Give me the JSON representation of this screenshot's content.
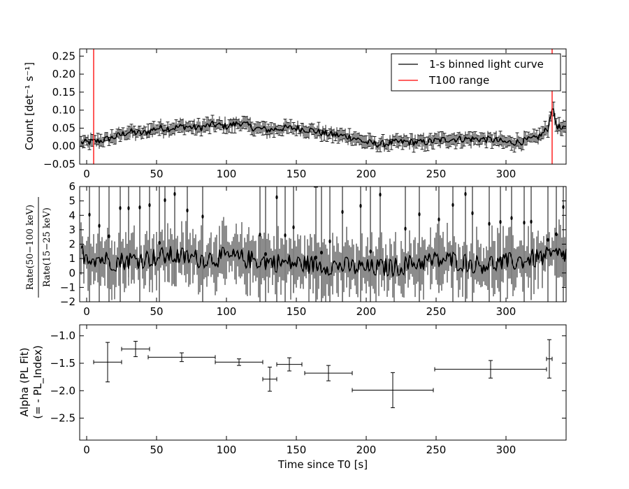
{
  "chart_data": [
    {
      "type": "line",
      "panel": "top",
      "ylabel": "Count [det⁻¹ s⁻¹]",
      "xlim": [
        -5,
        343
      ],
      "ylim": [
        -0.05,
        0.27
      ],
      "xticks": [
        0,
        50,
        100,
        150,
        200,
        250,
        300
      ],
      "xtick_labels": [
        "0",
        "50",
        "100",
        "150",
        "200",
        "250",
        "300"
      ],
      "yticks": [
        -0.05,
        0.0,
        0.05,
        0.1,
        0.15,
        0.2,
        0.25
      ],
      "ytick_labels": [
        "−0.05",
        "0.00",
        "0.05",
        "0.10",
        "0.15",
        "0.20",
        "0.25"
      ],
      "legend": {
        "placement": "top-right",
        "entries": [
          {
            "label": "1-s binned light curve",
            "color": "#000000"
          },
          {
            "label": "T100 range",
            "color": "#ff0000"
          }
        ]
      },
      "vlines": [
        5,
        333
      ],
      "series_control_points": {
        "x": [
          -5,
          0,
          10,
          20,
          30,
          40,
          50,
          60,
          70,
          80,
          90,
          100,
          110,
          120,
          130,
          140,
          150,
          160,
          170,
          180,
          190,
          200,
          210,
          220,
          230,
          240,
          250,
          260,
          270,
          280,
          290,
          300,
          310,
          320,
          325,
          330,
          333,
          336,
          340,
          343
        ],
        "y": [
          0.01,
          0.01,
          0.015,
          0.025,
          0.04,
          0.035,
          0.05,
          0.05,
          0.055,
          0.05,
          0.06,
          0.055,
          0.065,
          0.05,
          0.045,
          0.05,
          0.05,
          0.045,
          0.035,
          0.03,
          0.025,
          0.01,
          0.005,
          0.01,
          0.012,
          0.01,
          0.015,
          0.02,
          0.02,
          0.02,
          0.018,
          0.01,
          0.012,
          0.02,
          0.03,
          0.05,
          0.11,
          0.06,
          0.045,
          0.05
        ]
      },
      "errorbar_size": 0.015
    },
    {
      "type": "line",
      "panel": "middle",
      "ylabel_numerator": "Rate(50−100 keV)",
      "ylabel_denominator": "Rate(15−25 keV)",
      "xlim": [
        -5,
        343
      ],
      "ylim": [
        -2,
        6
      ],
      "xticks": [
        0,
        50,
        100,
        150,
        200,
        250,
        300
      ],
      "xtick_labels": [
        "0",
        "50",
        "100",
        "150",
        "200",
        "250",
        "300"
      ],
      "yticks": [
        -2,
        -1,
        0,
        1,
        2,
        3,
        4,
        5,
        6
      ],
      "ytick_labels": [
        "−2",
        "−1",
        "0",
        "1",
        "2",
        "3",
        "4",
        "5",
        "6"
      ],
      "series_control_points": {
        "x": [
          -5,
          0,
          20,
          40,
          60,
          80,
          100,
          120,
          140,
          160,
          180,
          200,
          220,
          240,
          260,
          280,
          300,
          320,
          343
        ],
        "y": [
          1.5,
          1.2,
          0.8,
          1.0,
          1.2,
          1.0,
          1.1,
          0.9,
          0.7,
          0.6,
          0.5,
          0.3,
          0.4,
          0.8,
          0.9,
          0.6,
          0.7,
          1.0,
          1.3
        ]
      },
      "outliers_x": [
        2,
        9,
        16,
        24,
        30,
        38,
        45,
        52,
        56,
        63,
        72,
        83,
        124,
        128,
        136,
        142,
        148,
        164,
        168,
        174,
        183,
        196,
        203,
        210,
        228,
        238,
        252,
        262,
        271,
        276,
        288,
        296,
        304,
        313,
        318,
        330,
        336,
        341
      ]
    },
    {
      "type": "scatter",
      "panel": "bottom",
      "xlabel": "Time since T0 [s]",
      "ylabel_line1": "Alpha (PL Fit)",
      "ylabel_line2": "(= - PL_Index)",
      "xlim": [
        -5,
        343
      ],
      "ylim": [
        -2.9,
        -0.8
      ],
      "xticks": [
        0,
        50,
        100,
        150,
        200,
        250,
        300
      ],
      "xtick_labels": [
        "0",
        "50",
        "100",
        "150",
        "200",
        "250",
        "300"
      ],
      "yticks": [
        -2.5,
        -2.0,
        -1.5,
        -1.0
      ],
      "ytick_labels": [
        "−2.5",
        "−2.0",
        "−1.5",
        "−1.0"
      ],
      "points": [
        {
          "x": 15,
          "xerr_lo": 10,
          "xerr_hi": 10,
          "y": -1.48,
          "yerr": 0.36
        },
        {
          "x": 35,
          "xerr_lo": 10,
          "xerr_hi": 10,
          "y": -1.24,
          "yerr": 0.14
        },
        {
          "x": 68,
          "xerr_lo": 24,
          "xerr_hi": 24,
          "y": -1.39,
          "yerr": 0.08
        },
        {
          "x": 109,
          "xerr_lo": 17,
          "xerr_hi": 17,
          "y": -1.48,
          "yerr": 0.06
        },
        {
          "x": 131,
          "xerr_lo": 5,
          "xerr_hi": 5,
          "y": -1.79,
          "yerr": 0.22
        },
        {
          "x": 145,
          "xerr_lo": 9,
          "xerr_hi": 9,
          "y": -1.52,
          "yerr": 0.12
        },
        {
          "x": 173,
          "xerr_lo": 17,
          "xerr_hi": 17,
          "y": -1.68,
          "yerr": 0.14
        },
        {
          "x": 219,
          "xerr_lo": 29,
          "xerr_hi": 29,
          "y": -1.99,
          "yerr": 0.32
        },
        {
          "x": 289,
          "xerr_lo": 40,
          "xerr_hi": 40,
          "y": -1.61,
          "yerr": 0.16
        },
        {
          "x": 331,
          "xerr_lo": 2,
          "xerr_hi": 2,
          "y": -1.42,
          "yerr": 0.35
        }
      ]
    }
  ]
}
